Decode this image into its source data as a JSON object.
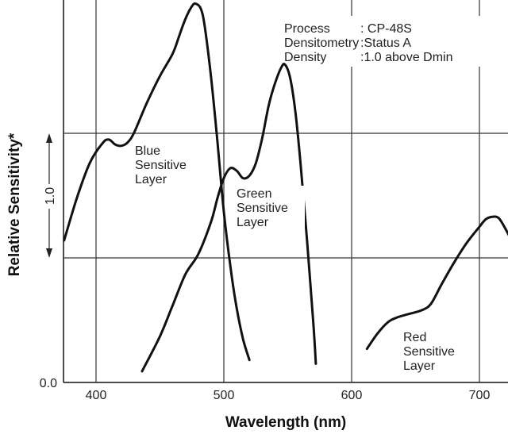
{
  "chart_data": {
    "type": "line",
    "xlabel": "Wavelength (nm)",
    "ylabel": "Relative Sensitivity*",
    "xlim": [
      370,
      730
    ],
    "x_ticks": [
      "400",
      "500",
      "600",
      "700"
    ],
    "y_ticks": [
      "0.0"
    ],
    "scale_bar_label": "1.0",
    "info": {
      "line1_key": "Process",
      "line1_val": ": CP-48S",
      "line2_key": "Densitometry",
      "line2_val": ":Status A",
      "line3_key": "Density",
      "line3_val": ":1.0 above Dmin"
    },
    "series": [
      {
        "name_lines": [
          "Blue",
          "Sensitive",
          "Layer"
        ],
        "x": [
          375,
          385,
          395,
          405,
          410,
          415,
          420,
          425,
          430,
          440,
          450,
          460,
          465,
          470,
          475,
          478,
          482,
          485,
          490,
          495,
          500,
          505,
          510,
          515,
          520
        ],
        "y": [
          1.14,
          1.48,
          1.76,
          1.92,
          1.95,
          1.91,
          1.9,
          1.93,
          2.01,
          2.25,
          2.46,
          2.64,
          2.78,
          2.92,
          3.02,
          3.04,
          3.0,
          2.86,
          2.45,
          1.93,
          1.37,
          0.94,
          0.6,
          0.35,
          0.18
        ]
      },
      {
        "name_lines": [
          "Green",
          "Sensitive",
          "Layer"
        ],
        "x": [
          436,
          450,
          460,
          470,
          480,
          490,
          495,
          500,
          505,
          510,
          515,
          520,
          525,
          530,
          535,
          540,
          545,
          548,
          552,
          556,
          560,
          565,
          570,
          572
        ],
        "y": [
          0.09,
          0.37,
          0.62,
          0.87,
          1.03,
          1.29,
          1.48,
          1.64,
          1.72,
          1.7,
          1.64,
          1.66,
          1.76,
          1.96,
          2.22,
          2.4,
          2.53,
          2.55,
          2.44,
          2.17,
          1.76,
          1.15,
          0.48,
          0.15
        ]
      },
      {
        "name_lines": [
          "Red",
          "Sensitive",
          "Layer"
        ],
        "x": [
          612,
          620,
          628,
          635,
          645,
          655,
          662,
          670,
          680,
          690,
          700,
          705,
          710,
          715,
          720,
          725,
          730
        ],
        "y": [
          0.27,
          0.39,
          0.48,
          0.52,
          0.55,
          0.58,
          0.63,
          0.78,
          0.96,
          1.12,
          1.25,
          1.31,
          1.33,
          1.32,
          1.24,
          1.14,
          1.02
        ]
      }
    ]
  }
}
